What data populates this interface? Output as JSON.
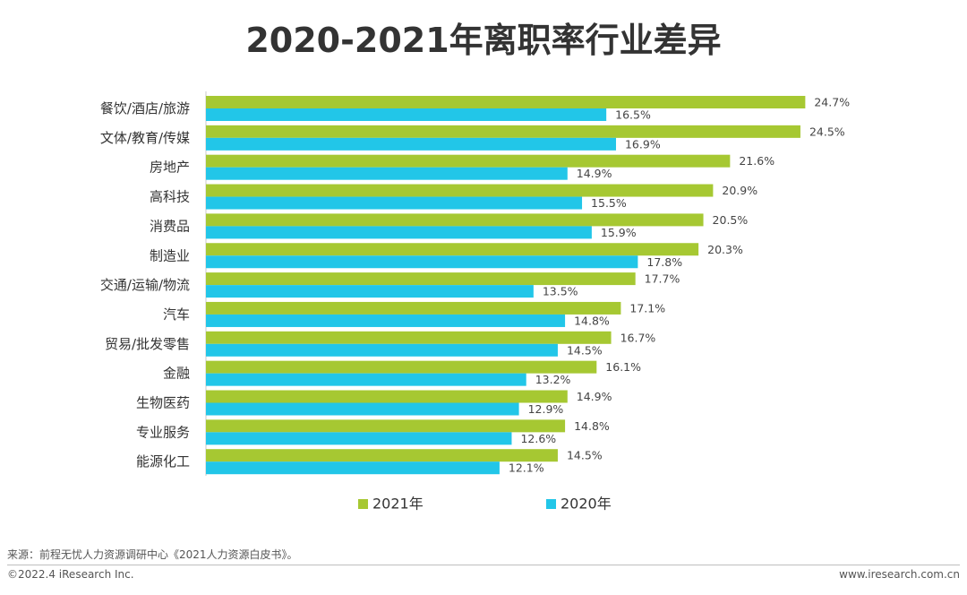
{
  "chart_data": {
    "type": "bar",
    "orientation": "horizontal",
    "title": "2020-2021年离职率行业差异",
    "categories": [
      "餐饮/酒店/旅游",
      "文体/教育/传媒",
      "房地产",
      "高科技",
      "消费品",
      "制造业",
      "交通/运输/物流",
      "汽车",
      "贸易/批发零售",
      "金融",
      "生物医药",
      "专业服务",
      "能源化工"
    ],
    "series": [
      {
        "name": "2021年",
        "color": "#a6c832",
        "values": [
          24.7,
          24.5,
          21.6,
          20.9,
          20.5,
          20.3,
          17.7,
          17.1,
          16.7,
          16.1,
          14.9,
          14.8,
          14.5
        ],
        "labels": [
          "24.7%",
          "24.5%",
          "21.6%",
          "20.9%",
          "20.5%",
          "20.3%",
          "17.7%",
          "17.1%",
          "16.7%",
          "16.1%",
          "14.9%",
          "14.8%",
          "14.5%"
        ]
      },
      {
        "name": "2020年",
        "color": "#22c6e8",
        "values": [
          16.5,
          16.9,
          14.9,
          15.5,
          15.9,
          17.8,
          13.5,
          14.8,
          14.5,
          13.2,
          12.9,
          12.6,
          12.1
        ],
        "labels": [
          "16.5%",
          "16.9%",
          "14.9%",
          "15.5%",
          "15.9%",
          "17.8%",
          "13.5%",
          "14.8%",
          "14.5%",
          "13.2%",
          "12.9%",
          "12.6%",
          "12.1%"
        ]
      }
    ],
    "xlim": [
      0,
      26
    ],
    "unit": "%",
    "grid": false,
    "legend": "bottom"
  },
  "footer": {
    "source": "来源：前程无忧人力资源调研中心《2021人力资源白皮书》。",
    "copyright": "©2022.4 iResearch Inc.",
    "website": "www.iresearch.com.cn"
  }
}
